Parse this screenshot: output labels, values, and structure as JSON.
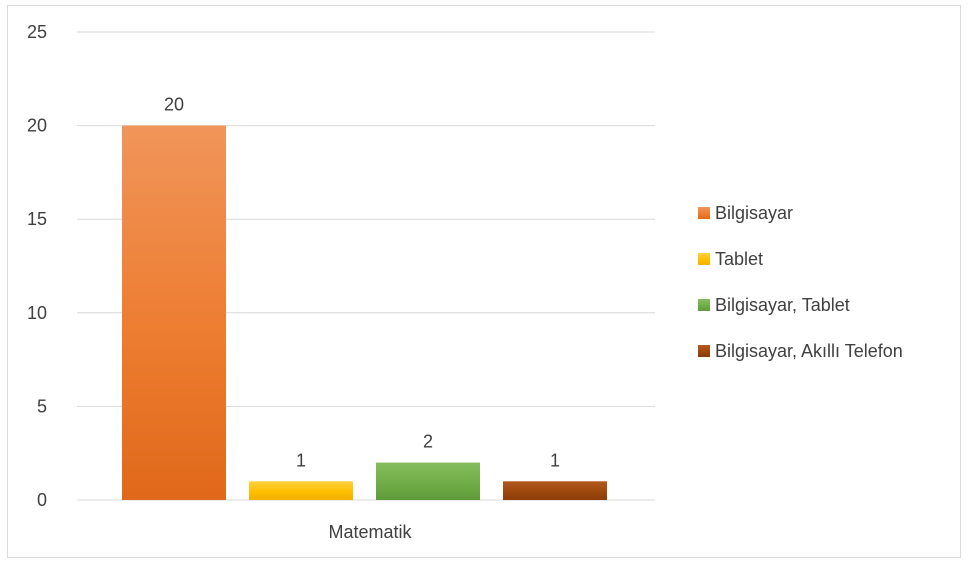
{
  "chart_data": {
    "type": "bar",
    "categories": [
      "Matematik"
    ],
    "series": [
      {
        "name": "Bilgisayar",
        "values": [
          20
        ],
        "color": "#ed7d31",
        "color_light": "#f0955a",
        "color_dark": "#e0681a"
      },
      {
        "name": "Tablet",
        "values": [
          1
        ],
        "color": "#ffc000",
        "color_light": "#ffd040",
        "color_dark": "#f2b000"
      },
      {
        "name": "Bilgisayar, Tablet",
        "values": [
          2
        ],
        "color": "#70ad47",
        "color_light": "#85bd5f",
        "color_dark": "#5f9a3a"
      },
      {
        "name": "Bilgisayar, Akıllı Telefon",
        "values": [
          1
        ],
        "color": "#9e480e",
        "color_light": "#b35a1e",
        "color_dark": "#8a3c08"
      }
    ],
    "title": "",
    "xlabel": "",
    "ylabel": "",
    "ylim": [
      0,
      25
    ],
    "yticks": [
      0,
      5,
      10,
      15,
      20,
      25
    ],
    "grid": true,
    "legend_position": "right",
    "data_labels": true,
    "colors": {
      "gridline": "#d9d9d9",
      "text": "#404040",
      "border": "#d9d9d9"
    }
  }
}
